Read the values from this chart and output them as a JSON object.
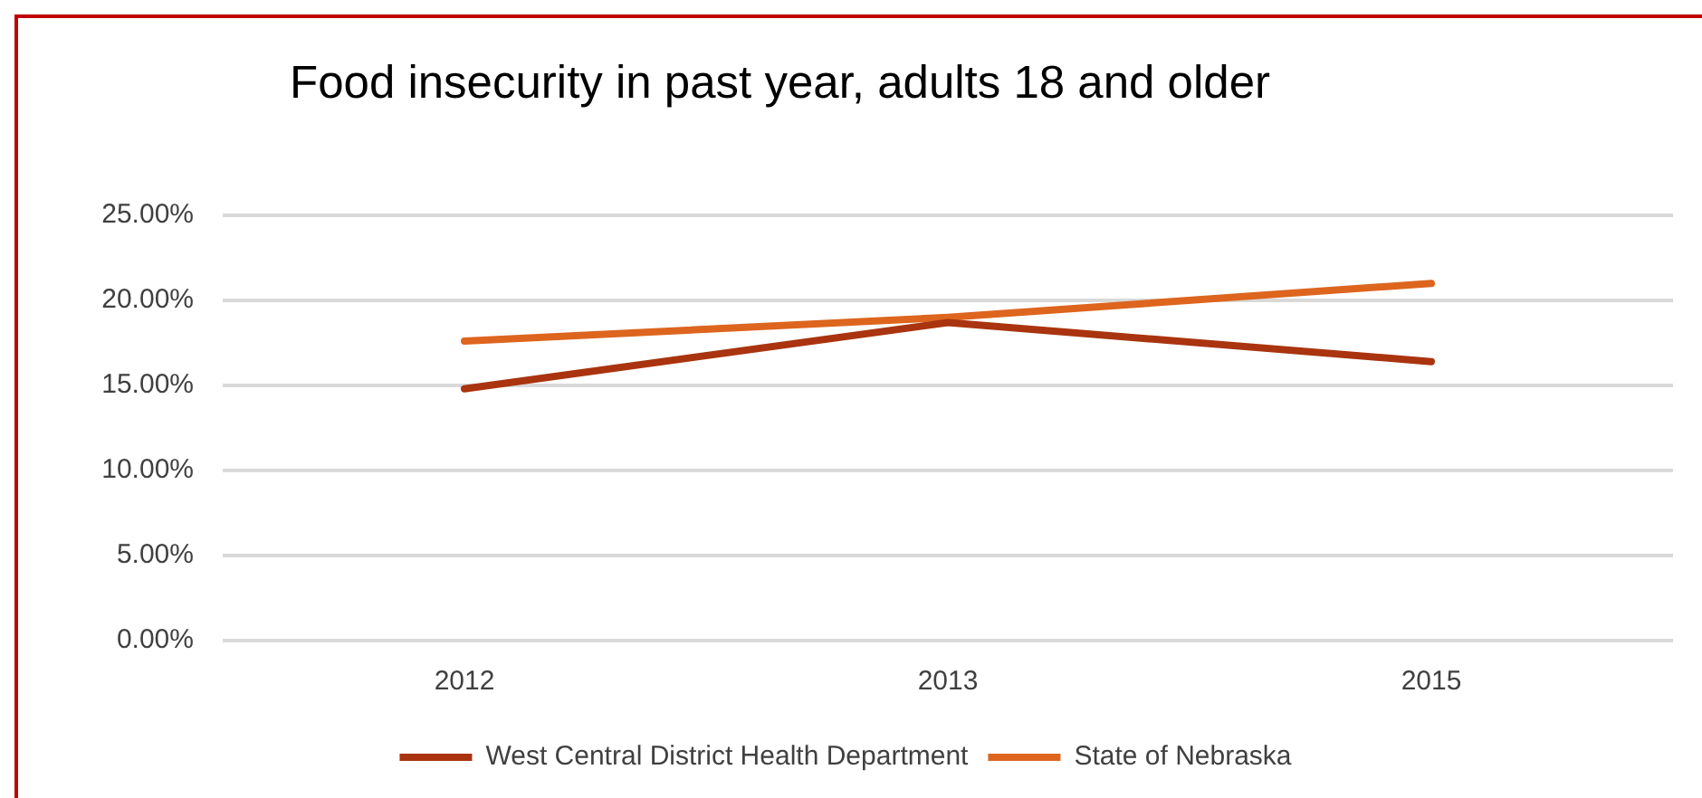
{
  "chart_data": {
    "type": "line",
    "title": "Food insecurity in past year, adults 18 and older",
    "categories": [
      "2012",
      "2013",
      "2015"
    ],
    "series": [
      {
        "name": "West Central District Health Department",
        "color": "#a9340f",
        "values": [
          14.8,
          18.7,
          16.4
        ]
      },
      {
        "name": "State of Nebraska",
        "color": "#dd651e",
        "values": [
          17.6,
          19.0,
          21.0
        ]
      }
    ],
    "ylim": [
      0,
      25
    ],
    "yticks": [
      {
        "value": 0,
        "label": "0.00%"
      },
      {
        "value": 5,
        "label": "5.00%"
      },
      {
        "value": 10,
        "label": "10.00%"
      },
      {
        "value": 15,
        "label": "15.00%"
      },
      {
        "value": 20,
        "label": "20.00%"
      },
      {
        "value": 25,
        "label": "25.00%"
      }
    ],
    "grid": "y",
    "legend": "bottom",
    "marker": "none",
    "line_style": "solid"
  }
}
